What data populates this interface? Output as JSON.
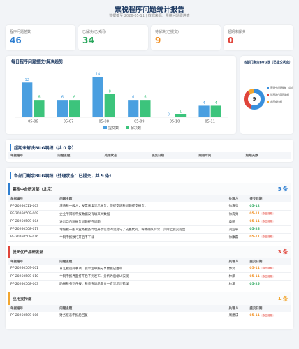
{
  "header": {
    "title": "票税程序问题统计报告",
    "subtitle": "数据截至 2026-05-11 | 数据来源：票税问题跟进表"
  },
  "kpis": [
    {
      "label": "程序问题总数",
      "value": "46",
      "color": "#2f7fd1"
    },
    {
      "label": "已解决(已关闭)",
      "value": "34",
      "color": "#27a65a"
    },
    {
      "label": "待解决(已提交)",
      "value": "9",
      "color": "#f08c1c"
    },
    {
      "label": "超期未解决",
      "value": "0",
      "color": "#e0443a"
    }
  ],
  "chart_data": [
    {
      "type": "bar",
      "title": "每日程序问题提交/解决趋势",
      "categories": [
        "05-06",
        "05-07",
        "05-08",
        "05-09",
        "05-10",
        "05-11"
      ],
      "series": [
        {
          "name": "提交数",
          "color": "#4a9fe0",
          "values": [
            12,
            6,
            14,
            6,
            0,
            4
          ]
        },
        {
          "name": "解决数",
          "color": "#3cc47c",
          "values": [
            6,
            6,
            8,
            6,
            1,
            4
          ]
        }
      ]
    },
    {
      "type": "pie",
      "title": "各部门剩余BUG数（已提交状态）",
      "center_value": 9,
      "categories": [
        "票税中台研发部（北京）",
        "悦天优产品研发部",
        "应用支持部"
      ],
      "values": [
        5,
        3,
        1
      ],
      "colors": [
        "#3a8fdc",
        "#e0443a",
        "#f2a630"
      ]
    }
  ],
  "overdue": {
    "title": "超期未解决BUG明细（共 0 条）",
    "columns": [
      "单据编号",
      "问题主题",
      "处理状态",
      "提交日期",
      "跟进时间",
      "超期天数"
    ]
  },
  "details": {
    "title": "各部门剩余BUG明细（处理状态：已提交，共 9 条）",
    "columns": [
      "单据编号",
      "问题主题",
      "处理人",
      "提交日期"
    ],
    "groups": [
      {
        "name": "票税中台研发部（北京）",
        "count": "5 条",
        "color": "#2f7fd1",
        "rows": [
          {
            "id": "PF-20260511-003",
            "subject": "增值税一般人，发票采集显示报告，但提交增税问题提交报告。",
            "handler": "徐海亮",
            "date": "05-12"
          },
          {
            "id": "PF-20260509-009",
            "subject": "企业所得税申报数据没有填来大数据",
            "handler": "徐海亮",
            "date": "05-11",
            "tag": "今日到期"
          },
          {
            "id": "PF-20260509-004",
            "subject": "进出口包税报告问题存在问题",
            "handler": "章鹏",
            "date": "05-11",
            "tag": "今日到期"
          },
          {
            "id": "PF-20260508-017",
            "subject": "增值税一般人业务税务代理开票信息的流变与了成色代码，导致确认异常、实际上提交提出",
            "handler": "刘亚平",
            "date": "05-26"
          },
          {
            "id": "PF-20260508-016",
            "subject": "个税申报数打开后不下载",
            "handler": "徐康磊",
            "date": "05-11",
            "tag": "今日到期"
          }
        ]
      },
      {
        "name": "悦天优产品研发部",
        "count": "3 条",
        "color": "#e0443a",
        "rows": [
          {
            "id": "PF-20260509-001",
            "subject": "日江税速商事项，提示还申报分享数据已推审",
            "handler": "郭鸿",
            "date": "05-11",
            "tag": "今日到期"
          },
          {
            "id": "PF-20260509-010",
            "subject": "个税申报界面打开后不到发布，分析为后端UI实现",
            "handler": "林泽",
            "date": "05-11",
            "tag": "今日到期"
          },
          {
            "id": "PF-20260508-003",
            "subject": "助报税务到任报，税单查询后面台一直显示出错误",
            "handler": "林泽",
            "date": "05-25"
          }
        ]
      },
      {
        "name": "应用支持部",
        "count": "1 条",
        "color": "#f2a630",
        "rows": [
          {
            "id": "PF-20260509-006",
            "subject": "财务报表申报后回复",
            "handler": "周建成",
            "date": "05-11",
            "tag": "今日到期"
          }
        ]
      }
    ]
  }
}
